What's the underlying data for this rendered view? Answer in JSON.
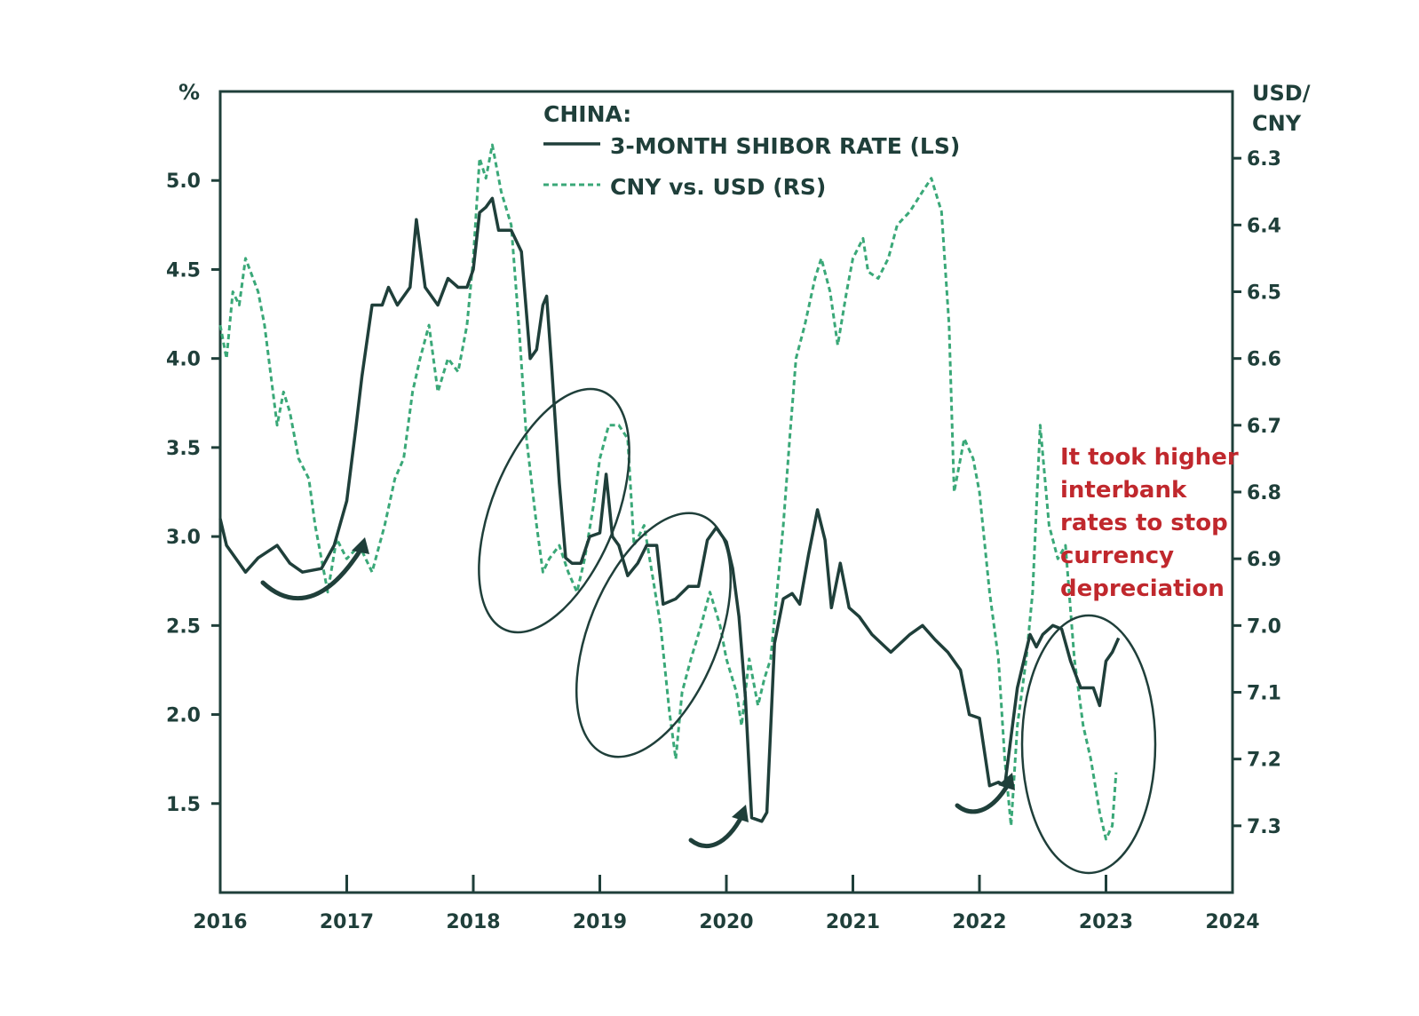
{
  "chart_data": {
    "type": "line",
    "title": "CHINA:",
    "left_axis": {
      "unit_label": "%",
      "ticks": [
        "1.5",
        "2.0",
        "2.5",
        "3.0",
        "3.5",
        "4.0",
        "4.5",
        "5.0"
      ],
      "tick_values": [
        1.5,
        2.0,
        2.5,
        3.0,
        3.5,
        4.0,
        4.5,
        5.0
      ],
      "range": [
        1.0,
        5.5
      ]
    },
    "right_axis": {
      "unit_label_line1": "USD/",
      "unit_label_line2": "CNY",
      "ticks": [
        "6.3",
        "6.4",
        "6.5",
        "6.6",
        "6.7",
        "6.8",
        "6.9",
        "7.0",
        "7.1",
        "7.2",
        "7.3"
      ],
      "tick_values": [
        6.3,
        6.4,
        6.5,
        6.6,
        6.7,
        6.8,
        6.9,
        7.0,
        7.1,
        7.2,
        7.3
      ],
      "range": [
        6.2,
        7.4
      ],
      "inverted": true
    },
    "x_axis": {
      "ticks": [
        "2016",
        "2017",
        "2018",
        "2019",
        "2020",
        "2021",
        "2022",
        "2023",
        "2024"
      ],
      "range": [
        2016,
        2024
      ]
    },
    "series": [
      {
        "name": "3-MONTH SHIBOR RATE (LS)",
        "axis": "left",
        "style": "solid",
        "color": "#1f3f3a",
        "points": [
          [
            2016.0,
            3.1
          ],
          [
            2016.05,
            2.95
          ],
          [
            2016.15,
            2.85
          ],
          [
            2016.2,
            2.8
          ],
          [
            2016.3,
            2.88
          ],
          [
            2016.45,
            2.95
          ],
          [
            2016.55,
            2.85
          ],
          [
            2016.65,
            2.8
          ],
          [
            2016.8,
            2.82
          ],
          [
            2016.9,
            2.95
          ],
          [
            2017.0,
            3.2
          ],
          [
            2017.07,
            3.6
          ],
          [
            2017.12,
            3.9
          ],
          [
            2017.2,
            4.3
          ],
          [
            2017.28,
            4.3
          ],
          [
            2017.33,
            4.4
          ],
          [
            2017.4,
            4.3
          ],
          [
            2017.5,
            4.4
          ],
          [
            2017.55,
            4.78
          ],
          [
            2017.62,
            4.4
          ],
          [
            2017.72,
            4.3
          ],
          [
            2017.8,
            4.45
          ],
          [
            2017.88,
            4.4
          ],
          [
            2017.95,
            4.4
          ],
          [
            2018.0,
            4.5
          ],
          [
            2018.05,
            4.82
          ],
          [
            2018.1,
            4.85
          ],
          [
            2018.15,
            4.9
          ],
          [
            2018.2,
            4.72
          ],
          [
            2018.3,
            4.72
          ],
          [
            2018.38,
            4.6
          ],
          [
            2018.45,
            4.0
          ],
          [
            2018.5,
            4.05
          ],
          [
            2018.55,
            4.3
          ],
          [
            2018.58,
            4.35
          ],
          [
            2018.62,
            3.95
          ],
          [
            2018.68,
            3.3
          ],
          [
            2018.73,
            2.88
          ],
          [
            2018.78,
            2.85
          ],
          [
            2018.85,
            2.85
          ],
          [
            2018.92,
            3.0
          ],
          [
            2019.0,
            3.02
          ],
          [
            2019.05,
            3.35
          ],
          [
            2019.1,
            3.0
          ],
          [
            2019.15,
            2.95
          ],
          [
            2019.22,
            2.78
          ],
          [
            2019.3,
            2.85
          ],
          [
            2019.37,
            2.95
          ],
          [
            2019.45,
            2.95
          ],
          [
            2019.5,
            2.62
          ],
          [
            2019.6,
            2.65
          ],
          [
            2019.7,
            2.72
          ],
          [
            2019.78,
            2.72
          ],
          [
            2019.85,
            2.98
          ],
          [
            2019.92,
            3.05
          ],
          [
            2020.0,
            2.97
          ],
          [
            2020.05,
            2.82
          ],
          [
            2020.1,
            2.55
          ],
          [
            2020.15,
            2.1
          ],
          [
            2020.2,
            1.42
          ],
          [
            2020.28,
            1.4
          ],
          [
            2020.32,
            1.45
          ],
          [
            2020.38,
            2.4
          ],
          [
            2020.45,
            2.65
          ],
          [
            2020.52,
            2.68
          ],
          [
            2020.58,
            2.62
          ],
          [
            2020.65,
            2.9
          ],
          [
            2020.72,
            3.15
          ],
          [
            2020.78,
            2.98
          ],
          [
            2020.83,
            2.6
          ],
          [
            2020.9,
            2.85
          ],
          [
            2020.97,
            2.6
          ],
          [
            2021.05,
            2.55
          ],
          [
            2021.15,
            2.45
          ],
          [
            2021.3,
            2.35
          ],
          [
            2021.45,
            2.45
          ],
          [
            2021.55,
            2.5
          ],
          [
            2021.65,
            2.42
          ],
          [
            2021.75,
            2.35
          ],
          [
            2021.85,
            2.25
          ],
          [
            2021.92,
            2.0
          ],
          [
            2022.0,
            1.98
          ],
          [
            2022.08,
            1.6
          ],
          [
            2022.15,
            1.62
          ],
          [
            2022.2,
            1.6
          ],
          [
            2022.3,
            2.15
          ],
          [
            2022.4,
            2.45
          ],
          [
            2022.45,
            2.38
          ],
          [
            2022.5,
            2.45
          ],
          [
            2022.58,
            2.5
          ],
          [
            2022.65,
            2.48
          ],
          [
            2022.72,
            2.3
          ],
          [
            2022.8,
            2.15
          ],
          [
            2022.9,
            2.15
          ],
          [
            2022.95,
            2.05
          ],
          [
            2023.0,
            2.3
          ],
          [
            2023.05,
            2.35
          ],
          [
            2023.1,
            2.43
          ]
        ]
      },
      {
        "name": "CNY vs. USD (RS)",
        "axis": "right",
        "style": "dashed",
        "color": "#3aa878",
        "points": [
          [
            2016.0,
            6.55
          ],
          [
            2016.05,
            6.6
          ],
          [
            2016.1,
            6.5
          ],
          [
            2016.15,
            6.52
          ],
          [
            2016.2,
            6.45
          ],
          [
            2016.3,
            6.5
          ],
          [
            2016.35,
            6.55
          ],
          [
            2016.45,
            6.7
          ],
          [
            2016.5,
            6.65
          ],
          [
            2016.55,
            6.68
          ],
          [
            2016.62,
            6.75
          ],
          [
            2016.7,
            6.78
          ],
          [
            2016.75,
            6.85
          ],
          [
            2016.8,
            6.9
          ],
          [
            2016.85,
            6.95
          ],
          [
            2016.92,
            6.87
          ],
          [
            2017.0,
            6.9
          ],
          [
            2017.1,
            6.88
          ],
          [
            2017.2,
            6.92
          ],
          [
            2017.3,
            6.85
          ],
          [
            2017.38,
            6.78
          ],
          [
            2017.45,
            6.75
          ],
          [
            2017.52,
            6.65
          ],
          [
            2017.58,
            6.6
          ],
          [
            2017.65,
            6.55
          ],
          [
            2017.72,
            6.65
          ],
          [
            2017.8,
            6.6
          ],
          [
            2017.88,
            6.62
          ],
          [
            2017.95,
            6.55
          ],
          [
            2018.0,
            6.45
          ],
          [
            2018.05,
            6.3
          ],
          [
            2018.1,
            6.33
          ],
          [
            2018.15,
            6.28
          ],
          [
            2018.22,
            6.35
          ],
          [
            2018.3,
            6.4
          ],
          [
            2018.36,
            6.55
          ],
          [
            2018.42,
            6.72
          ],
          [
            2018.5,
            6.85
          ],
          [
            2018.55,
            6.92
          ],
          [
            2018.6,
            6.9
          ],
          [
            2018.68,
            6.88
          ],
          [
            2018.75,
            6.92
          ],
          [
            2018.82,
            6.95
          ],
          [
            2018.88,
            6.9
          ],
          [
            2018.95,
            6.82
          ],
          [
            2019.0,
            6.75
          ],
          [
            2019.07,
            6.7
          ],
          [
            2019.15,
            6.7
          ],
          [
            2019.22,
            6.72
          ],
          [
            2019.27,
            6.88
          ],
          [
            2019.35,
            6.85
          ],
          [
            2019.42,
            6.93
          ],
          [
            2019.48,
            7.0
          ],
          [
            2019.55,
            7.13
          ],
          [
            2019.6,
            7.2
          ],
          [
            2019.65,
            7.1
          ],
          [
            2019.72,
            7.05
          ],
          [
            2019.8,
            7.0
          ],
          [
            2019.87,
            6.95
          ],
          [
            2019.95,
            7.0
          ],
          [
            2020.0,
            7.05
          ],
          [
            2020.08,
            7.1
          ],
          [
            2020.12,
            7.15
          ],
          [
            2020.18,
            7.05
          ],
          [
            2020.25,
            7.12
          ],
          [
            2020.3,
            7.08
          ],
          [
            2020.35,
            7.05
          ],
          [
            2020.4,
            6.95
          ],
          [
            2020.45,
            6.85
          ],
          [
            2020.5,
            6.72
          ],
          [
            2020.55,
            6.6
          ],
          [
            2020.62,
            6.55
          ],
          [
            2020.7,
            6.48
          ],
          [
            2020.75,
            6.45
          ],
          [
            2020.82,
            6.5
          ],
          [
            2020.88,
            6.58
          ],
          [
            2020.95,
            6.5
          ],
          [
            2021.0,
            6.45
          ],
          [
            2021.08,
            6.42
          ],
          [
            2021.12,
            6.47
          ],
          [
            2021.2,
            6.48
          ],
          [
            2021.28,
            6.45
          ],
          [
            2021.35,
            6.4
          ],
          [
            2021.45,
            6.38
          ],
          [
            2021.55,
            6.35
          ],
          [
            2021.62,
            6.33
          ],
          [
            2021.7,
            6.38
          ],
          [
            2021.76,
            6.55
          ],
          [
            2021.8,
            6.8
          ],
          [
            2021.88,
            6.72
          ],
          [
            2021.95,
            6.75
          ],
          [
            2022.0,
            6.8
          ],
          [
            2022.08,
            6.95
          ],
          [
            2022.15,
            7.05
          ],
          [
            2022.2,
            7.2
          ],
          [
            2022.25,
            7.3
          ],
          [
            2022.3,
            7.15
          ],
          [
            2022.37,
            7.05
          ],
          [
            2022.42,
            6.95
          ],
          [
            2022.48,
            6.7
          ],
          [
            2022.55,
            6.85
          ],
          [
            2022.62,
            6.9
          ],
          [
            2022.68,
            6.88
          ],
          [
            2022.75,
            7.05
          ],
          [
            2022.82,
            7.15
          ],
          [
            2022.88,
            7.2
          ],
          [
            2022.95,
            7.28
          ],
          [
            2023.0,
            7.32
          ],
          [
            2023.05,
            7.3
          ],
          [
            2023.08,
            7.22
          ]
        ]
      }
    ],
    "legend": {
      "header": "CHINA:",
      "entries": [
        "3-MONTH SHIBOR RATE (LS)",
        "CNY vs. USD (RS)"
      ],
      "placement": "top-center"
    },
    "annotation": {
      "lines": [
        "It took higher",
        "interbank",
        "rates to stop",
        "currency",
        "depreciation"
      ],
      "color": "#c0282d",
      "placement": "right"
    },
    "grid": false
  }
}
